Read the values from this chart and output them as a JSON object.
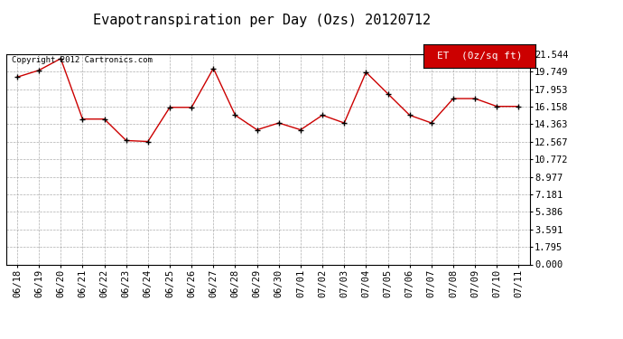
{
  "title": "Evapotranspiration per Day (Ozs) 20120712",
  "copyright": "Copyright 2012 Cartronics.com",
  "legend_label": "ET  (0z/sq ft)",
  "x_labels": [
    "06/18",
    "06/19",
    "06/20",
    "06/21",
    "06/22",
    "06/23",
    "06/24",
    "06/25",
    "06/26",
    "06/27",
    "06/28",
    "06/29",
    "06/30",
    "07/01",
    "07/02",
    "07/03",
    "07/04",
    "07/05",
    "07/06",
    "07/07",
    "07/08",
    "07/09",
    "07/10",
    "07/11"
  ],
  "y_values": [
    19.2,
    19.9,
    21.1,
    14.9,
    14.9,
    12.7,
    12.6,
    16.1,
    16.1,
    20.1,
    15.3,
    13.8,
    14.5,
    13.8,
    15.3,
    14.5,
    19.7,
    17.5,
    15.3,
    14.5,
    17.0,
    17.0,
    16.2,
    16.2
  ],
  "y_ticks": [
    0.0,
    1.795,
    3.591,
    5.386,
    7.181,
    8.977,
    10.772,
    12.567,
    14.363,
    16.158,
    17.953,
    19.749,
    21.544
  ],
  "y_tick_labels": [
    "0.000",
    "1.795",
    "3.591",
    "5.386",
    "7.181",
    "8.977",
    "10.772",
    "12.567",
    "14.363",
    "16.158",
    "17.953",
    "19.749",
    "21.544"
  ],
  "ylim": [
    0,
    21.544
  ],
  "line_color": "#cc0000",
  "marker_color": "#000000",
  "background_color": "#ffffff",
  "grid_color": "#999999",
  "legend_bg": "#cc0000",
  "legend_text_color": "#ffffff",
  "title_fontsize": 11,
  "tick_fontsize": 7.5,
  "copyright_fontsize": 6.5
}
